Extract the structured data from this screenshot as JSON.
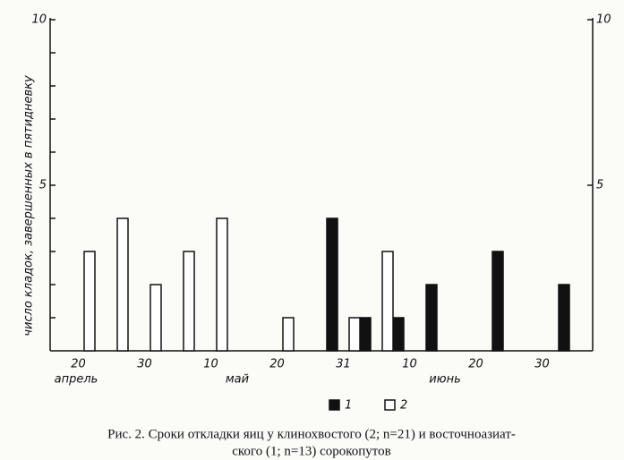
{
  "chart_data": {
    "type": "bar",
    "ylabel": "число кладок, завершенных в пятидневку",
    "categories": [
      null,
      null,
      null,
      null,
      null,
      null,
      null,
      null,
      null,
      null,
      null,
      null,
      null,
      null,
      null
    ],
    "xticks": [
      "20",
      "30",
      "10",
      "20",
      "31",
      "10",
      "20",
      "30"
    ],
    "month_labels": [
      "апрель",
      "май",
      "июнь"
    ],
    "series": [
      {
        "name": "1",
        "color": "#111111",
        "values": [
          0,
          0,
          0,
          0,
          0,
          0,
          0,
          4,
          1,
          1,
          2,
          0,
          3,
          0,
          2
        ]
      },
      {
        "name": "2",
        "color": "#ffffff",
        "values": [
          3,
          4,
          2,
          3,
          4,
          0,
          1,
          0,
          1,
          3,
          0,
          0,
          0,
          0,
          0
        ]
      }
    ],
    "ylim": [
      0,
      10
    ],
    "yticks": [
      {
        "value": 1,
        "label": null
      },
      {
        "value": 2,
        "label": null
      },
      {
        "value": 3,
        "label": null
      },
      {
        "value": 4,
        "label": null
      },
      5,
      {
        "value": 6,
        "label": null
      },
      {
        "value": 7,
        "label": null
      },
      {
        "value": 8,
        "label": null
      },
      {
        "value": 9,
        "label": null
      },
      10
    ],
    "y2lim": [
      0,
      10
    ],
    "y2ticks": [
      5,
      10
    ],
    "legend": "bottom",
    "caption": [
      "Рис. 2. Сроки откладки яиц у клинохвостого (2; n=21) и восточноазиат-",
      "ского (1; n=13) сорокопутов"
    ]
  }
}
